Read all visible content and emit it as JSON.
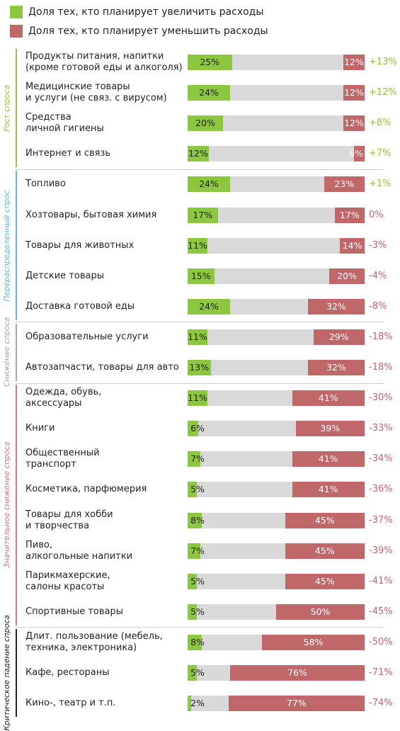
{
  "chart_data": {
    "type": "bar",
    "xlim": [
      0,
      100
    ],
    "series": [
      {
        "name": "Доля тех, кто планирует увеличить расходы",
        "color": "#8dc63f",
        "values": [
          25,
          24,
          20,
          12,
          24,
          17,
          11,
          15,
          24,
          11,
          13,
          11,
          6,
          7,
          5,
          8,
          7,
          5,
          5,
          8,
          5,
          2
        ],
        "value_labels": [
          "25%",
          "24%",
          "20%",
          "12%",
          "24%",
          "17%",
          "11%",
          "15%",
          "24%",
          "11%",
          "13%",
          "11%",
          "6%",
          "7%",
          "5%",
          "8%",
          "7%",
          "5%",
          "5%",
          "8%",
          "5%",
          "2%"
        ]
      },
      {
        "name": "Доля тех, кто планирует уменьшить расходы",
        "color": "#c0676a",
        "values": [
          12,
          12,
          12,
          6,
          23,
          17,
          14,
          20,
          32,
          29,
          32,
          41,
          39,
          41,
          41,
          45,
          45,
          45,
          50,
          58,
          76,
          77
        ],
        "value_labels": [
          "12%",
          "12%",
          "12%",
          "6%",
          "23%",
          "17%",
          "14%",
          "20%",
          "32%",
          "29%",
          "32%",
          "41%",
          "39%",
          "41%",
          "41%",
          "45%",
          "45%",
          "45%",
          "50%",
          "58%",
          "76%",
          "77%"
        ]
      }
    ],
    "net_values": [
      13,
      12,
      8,
      7,
      1,
      0,
      -3,
      -4,
      -8,
      -18,
      -18,
      -30,
      -33,
      -34,
      -36,
      -37,
      -39,
      -41,
      -45,
      -50,
      -71,
      -74
    ],
    "net_labels": [
      "+13%",
      "+12%",
      "+8%",
      "+7%",
      "+1%",
      "0%",
      "-3%",
      "-4%",
      "-8%",
      "-18%",
      "-18%",
      "-30%",
      "-33%",
      "-34%",
      "-36%",
      "-37%",
      "-39%",
      "-41%",
      "-45%",
      "-50%",
      "-71%",
      "-74%"
    ],
    "groups": [
      {
        "label": "Рост спроса",
        "color": "#8dc63f",
        "categories": [
          "Продукты питания, напитки\n(кроме готовой еды и алкоголя)",
          "Медицинские товары\nи услуги (не связ. с вирусом)",
          "Средства\nличной гигиены",
          "Интернет и связь"
        ]
      },
      {
        "label": "Перераспределенный спрос",
        "color": "#5bb8dc",
        "categories": [
          "Топливо",
          "Хозтовары, бытовая химия",
          "Товары для животных",
          "Детские товары",
          "Доставка готовой еды"
        ]
      },
      {
        "label": "Снижение спроса",
        "color": "#a6a6a6",
        "categories": [
          "Образовательные услуги",
          "Автозапчасти, товары для авто"
        ]
      },
      {
        "label": "Значительное снижение спроса",
        "color": "#d9777a",
        "categories": [
          "Одежда, обувь,\nаксессуары",
          "Книги",
          "Общественный\nтранспорт",
          "Косметика, парфюмерия",
          "Товары для хобби\nи творчества",
          "Пиво,\nалкогольные напитки",
          "Парикмахерские,\nсалоны красоты",
          "Спортивные товары"
        ]
      },
      {
        "label": "Критическое падение спроса",
        "color": "#222222",
        "categories": [
          "Длит. пользование (мебель,\nтехника, электроника)",
          "Кафе, рестораны",
          "Кино-, театр и т.п."
        ]
      }
    ]
  }
}
